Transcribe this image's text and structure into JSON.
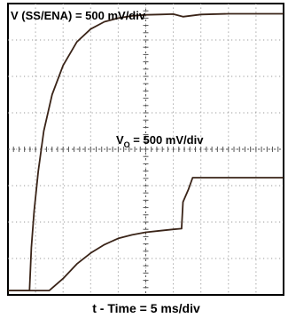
{
  "chart_data": {
    "type": "line",
    "title": "",
    "xlabel": "t - Time = 5 ms/div",
    "ylabel": "",
    "x_unit": "div",
    "y_unit": "div",
    "xlim": [
      0,
      10
    ],
    "ylim": [
      0,
      8
    ],
    "grid": true,
    "annotations": [
      {
        "text": "V (SS/ENA) = 500 mV/div"
      },
      {
        "text_main": "V",
        "text_sub": "O",
        "text_rest": " = 500 mV/div"
      }
    ],
    "series": [
      {
        "name": "V (SS/ENA)",
        "x": [
          0,
          0.78,
          0.85,
          0.95,
          1.1,
          1.3,
          1.6,
          2.0,
          2.5,
          3.0,
          3.5,
          4.0,
          4.5,
          5.0,
          5.5,
          6.0,
          6.35,
          7.0,
          8.0,
          9.0,
          10.0
        ],
        "y": [
          0.12,
          0.12,
          1.3,
          2.3,
          3.4,
          4.5,
          5.5,
          6.3,
          6.95,
          7.3,
          7.5,
          7.6,
          7.66,
          7.69,
          7.7,
          7.71,
          7.64,
          7.7,
          7.72,
          7.72,
          7.72
        ]
      },
      {
        "name": "VO",
        "x": [
          0,
          1.5,
          2.0,
          2.5,
          3.0,
          3.5,
          4.0,
          4.5,
          5.0,
          5.5,
          6.0,
          6.3,
          6.35,
          6.55,
          6.7,
          7.0,
          8.0,
          9.0,
          10.0
        ],
        "y": [
          0.12,
          0.12,
          0.45,
          0.85,
          1.15,
          1.38,
          1.55,
          1.65,
          1.72,
          1.76,
          1.8,
          1.82,
          2.55,
          2.9,
          3.22,
          3.22,
          3.22,
          3.22,
          3.22
        ]
      }
    ]
  }
}
